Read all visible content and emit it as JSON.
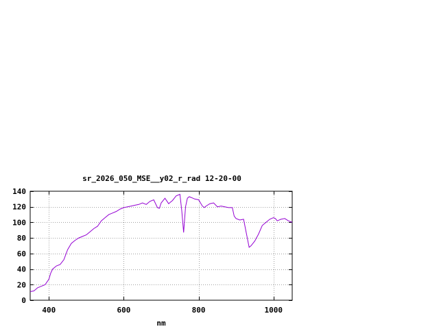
{
  "chart_data": {
    "type": "line",
    "title": "sr_2026_050_MSE__y02_r_rad 12-20-00",
    "xlabel": "nm",
    "ylabel": "",
    "xlim": [
      350,
      1050
    ],
    "ylim": [
      0,
      140
    ],
    "xticks": [
      400,
      600,
      800,
      1000
    ],
    "yticks": [
      0,
      20,
      40,
      60,
      80,
      100,
      120,
      140
    ],
    "grid": true,
    "legend": "none",
    "series": [
      {
        "name": "",
        "color": "#9400d3",
        "x": [
          350,
          360,
          370,
          380,
          390,
          400,
          405,
          410,
          420,
          430,
          440,
          450,
          460,
          470,
          480,
          490,
          500,
          510,
          520,
          530,
          540,
          550,
          560,
          570,
          580,
          590,
          600,
          610,
          620,
          630,
          640,
          650,
          660,
          670,
          680,
          690,
          695,
          700,
          710,
          720,
          725,
          730,
          740,
          750,
          755,
          760,
          765,
          770,
          775,
          780,
          790,
          800,
          810,
          815,
          820,
          830,
          840,
          850,
          860,
          870,
          880,
          890,
          895,
          900,
          910,
          920,
          925,
          930,
          935,
          940,
          950,
          960,
          970,
          980,
          990,
          1000,
          1005,
          1010,
          1020,
          1030,
          1040,
          1050
        ],
        "y": [
          11,
          12,
          16,
          18,
          20,
          27,
          35,
          40,
          44,
          46,
          52,
          65,
          73,
          77,
          80,
          82,
          84,
          88,
          92,
          95,
          102,
          106,
          110,
          112,
          114,
          117,
          119,
          120,
          121,
          122,
          123,
          125,
          123,
          127,
          129,
          119,
          118,
          125,
          131,
          124,
          126,
          128,
          134,
          136,
          115,
          87,
          120,
          131,
          133,
          132,
          130,
          129,
          121,
          119,
          121,
          124,
          125,
          120,
          121,
          120,
          119,
          119,
          108,
          105,
          103,
          104,
          92,
          80,
          68,
          70,
          76,
          85,
          96,
          100,
          104,
          106,
          105,
          102,
          104,
          105,
          102,
          100
        ]
      }
    ]
  }
}
